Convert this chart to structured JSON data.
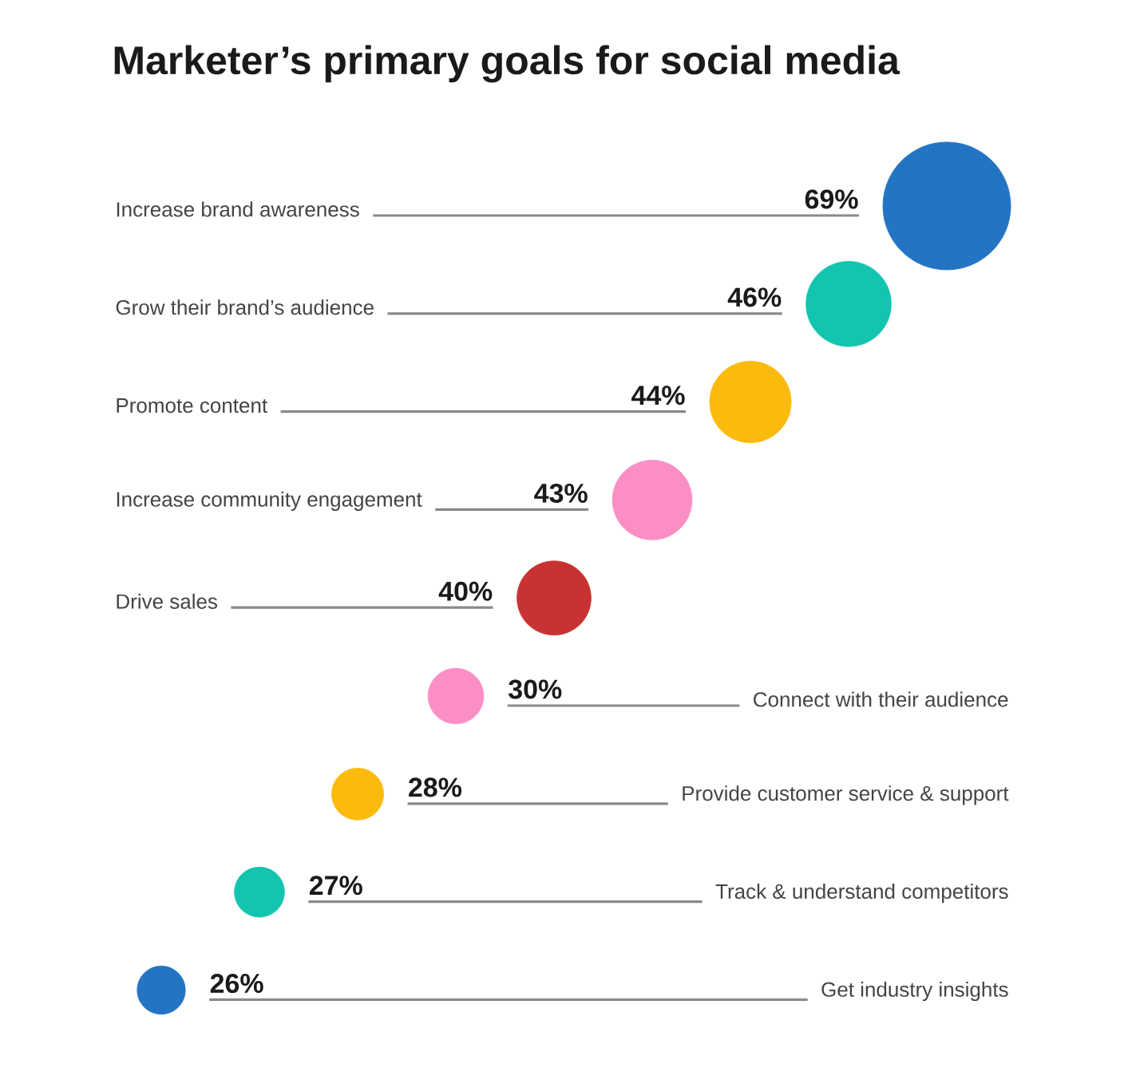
{
  "chart_data": {
    "type": "other",
    "title": "Marketer’s primary goals for social media",
    "categories": [
      "Increase brand awareness",
      "Grow their brand’s audience",
      "Promote content",
      "Increase community engagement",
      "Drive sales",
      "Connect with their audience",
      "Provide customer service & support",
      "Track & understand competitors",
      "Get industry insights"
    ],
    "values": [
      69,
      46,
      44,
      43,
      40,
      30,
      28,
      27,
      26
    ],
    "value_labels": [
      "69%",
      "46%",
      "44%",
      "43%",
      "40%",
      "30%",
      "28%",
      "27%",
      "26%"
    ],
    "colors": [
      "#2474c4",
      "#13c4b0",
      "#fbbb0d",
      "#fb8fc4",
      "#c83232",
      "#fb8fc4",
      "#fbbb0d",
      "#13c4b0",
      "#2474c4"
    ]
  }
}
